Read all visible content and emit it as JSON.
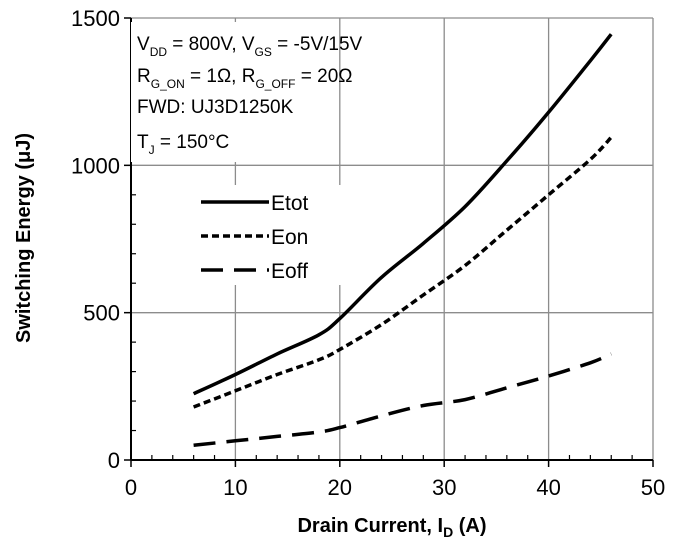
{
  "chart_data": {
    "type": "line",
    "xlabel": "Drain Current, I",
    "xlabel_sub": "D",
    "xlabel_unit": " (A)",
    "ylabel": "Switching Energy (μJ)",
    "xlim": [
      0,
      50
    ],
    "ylim": [
      0,
      1500
    ],
    "x_ticks": [
      0,
      10,
      20,
      30,
      40,
      50
    ],
    "y_ticks": [
      0,
      500,
      1000,
      1500
    ],
    "grid": true,
    "legend_position": "left-middle",
    "annotations": {
      "line1": {
        "main": "V",
        "sub1": "DD",
        "mid": " = 800V, V",
        "sub2": "GS",
        "tail": " = -5V/15V"
      },
      "line2": {
        "main": "R",
        "sub1": "G_ON",
        "mid": " = 1Ω, R",
        "sub2": "G_OFF",
        "tail": " = 20Ω"
      },
      "line3": {
        "text": "FWD: UJ3D1250K"
      },
      "line4": {
        "main": "T",
        "sub1": "J",
        "tail": " = 150°C"
      }
    },
    "series": [
      {
        "name": "Etot",
        "style": "solid",
        "x": [
          6,
          10,
          14,
          18,
          20,
          24,
          28,
          32,
          36,
          40,
          44,
          46
        ],
        "y": [
          225,
          290,
          360,
          425,
          480,
          620,
          735,
          860,
          1015,
          1180,
          1355,
          1445
        ]
      },
      {
        "name": "Eon",
        "style": "dashed",
        "x": [
          6,
          10,
          14,
          18,
          20,
          24,
          28,
          32,
          36,
          40,
          44,
          46
        ],
        "y": [
          180,
          235,
          290,
          340,
          375,
          460,
          560,
          660,
          780,
          900,
          1020,
          1095
        ]
      },
      {
        "name": "Eoff",
        "style": "longdash",
        "x": [
          6,
          10,
          14,
          18,
          20,
          24,
          28,
          32,
          36,
          40,
          44,
          46
        ],
        "y": [
          50,
          65,
          80,
          95,
          110,
          150,
          185,
          205,
          245,
          285,
          330,
          360
        ]
      }
    ]
  }
}
